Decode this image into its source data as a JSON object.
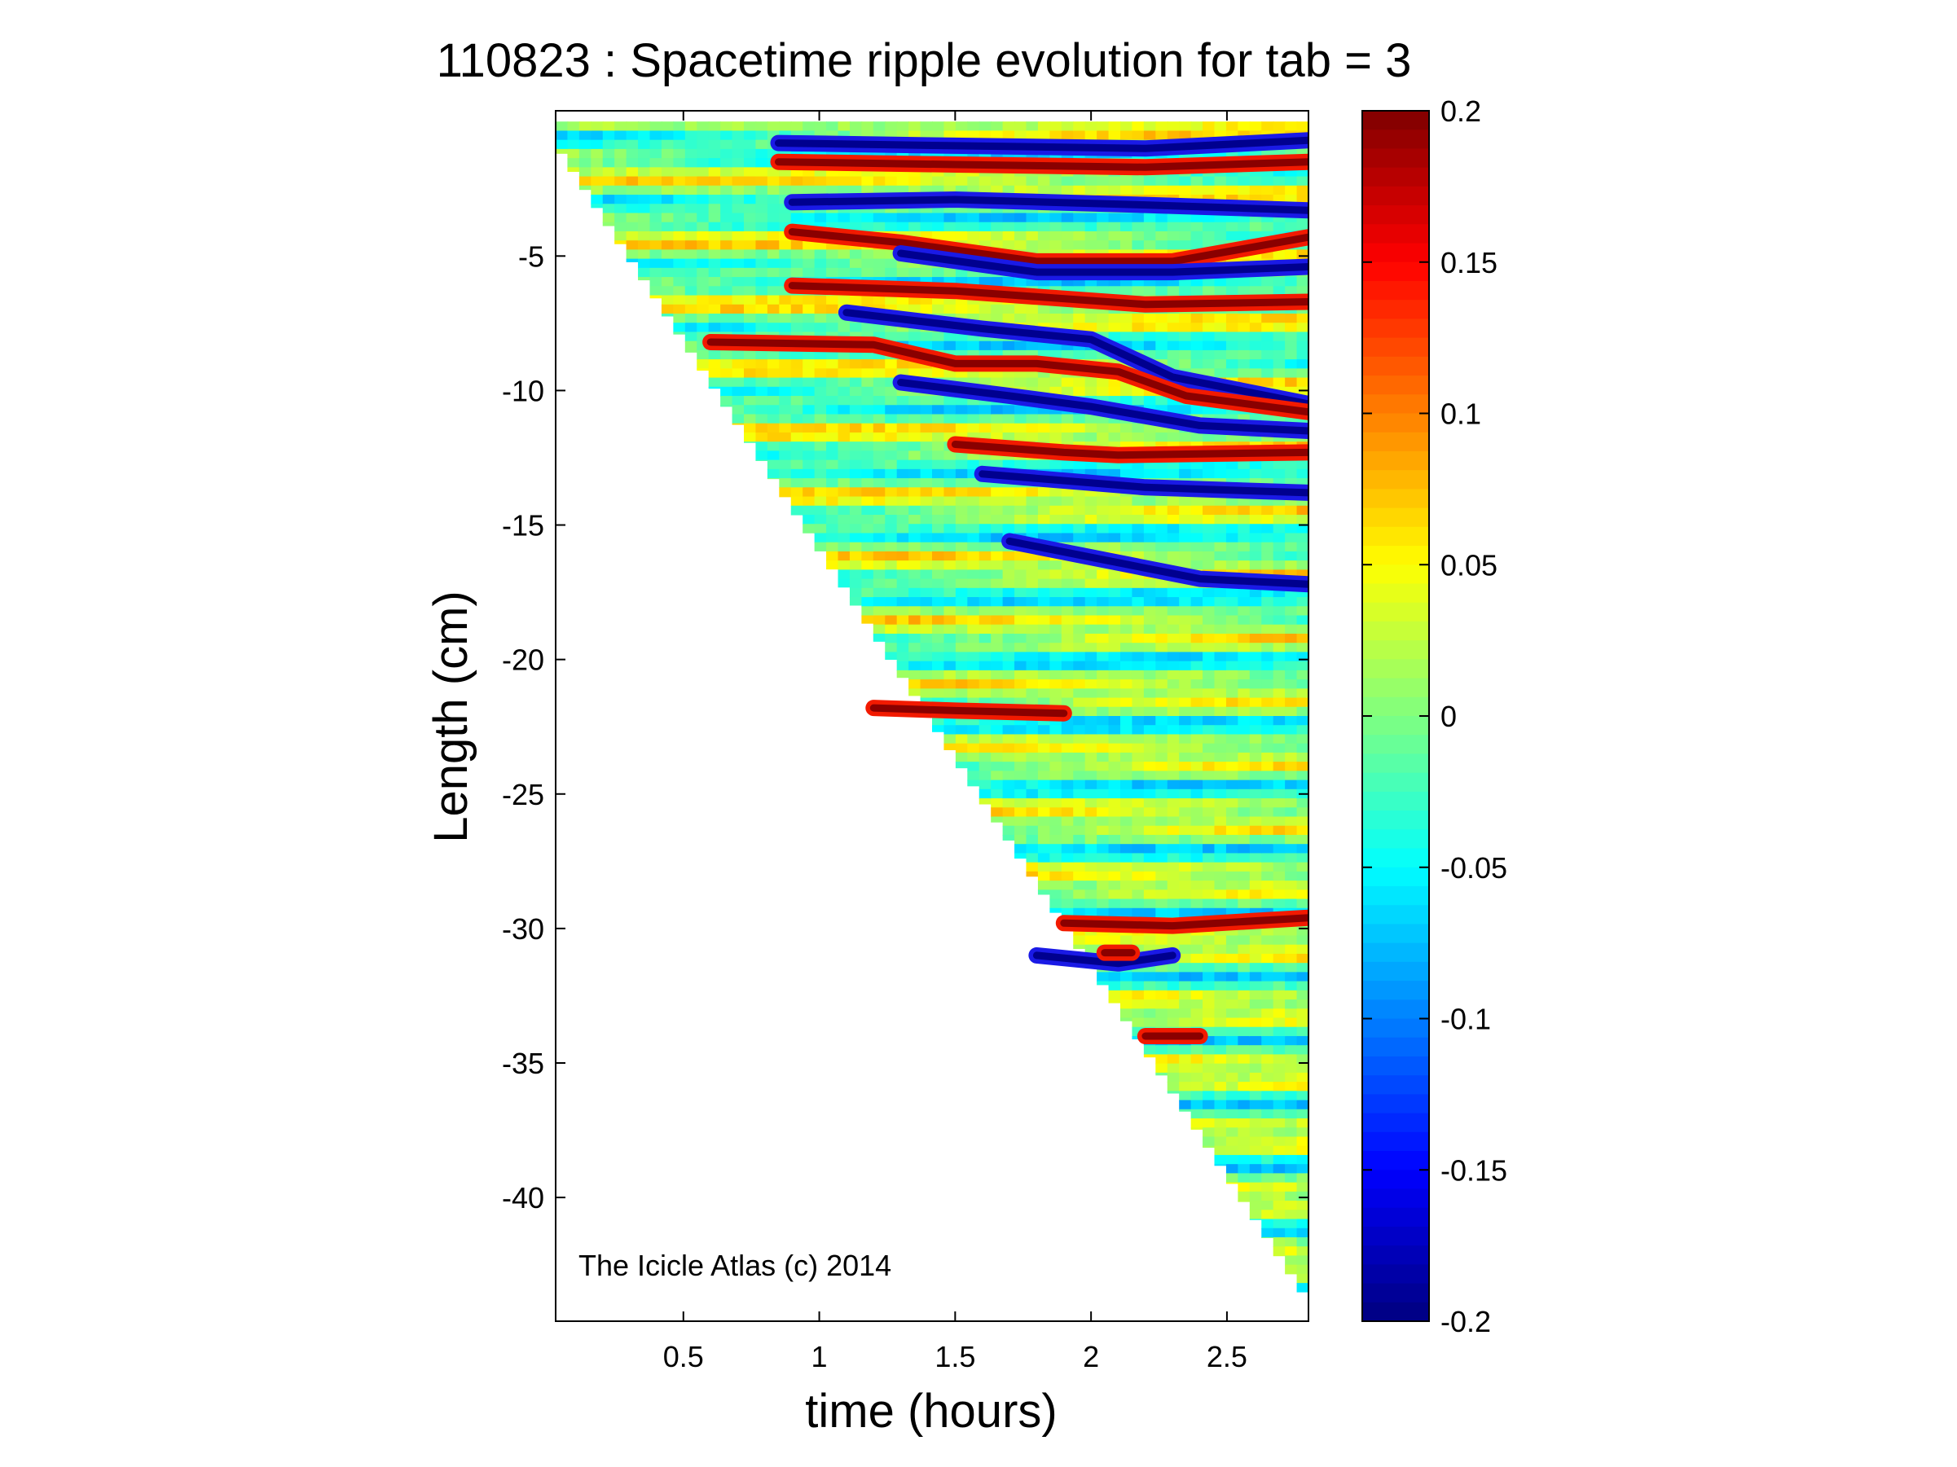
{
  "chart_data": {
    "type": "heatmap",
    "title": "110823 : Spacetime ripple evolution for tab = 3",
    "xlabel": "time (hours)",
    "ylabel": "Length (cm)",
    "xlim": [
      0.03,
      2.8
    ],
    "ylim": [
      -44.6,
      0.4
    ],
    "x_ticks": [
      0.5,
      1,
      1.5,
      2,
      2.5
    ],
    "x_tick_labels": [
      "0.5",
      "1",
      "1.5",
      "2",
      "2.5"
    ],
    "y_ticks": [
      -5,
      -10,
      -15,
      -20,
      -25,
      -30,
      -35,
      -40
    ],
    "y_tick_labels": [
      "-5",
      "-10",
      "-15",
      "-20",
      "-25",
      "-30",
      "-35",
      "-40"
    ],
    "colormap": "jet",
    "clim": [
      -0.2,
      0.2
    ],
    "colorbar_ticks": [
      0.2,
      0.15,
      0.1,
      0.05,
      0,
      -0.05,
      -0.1,
      -0.15,
      -0.2
    ],
    "colorbar_tick_labels": [
      "0.2",
      "0.15",
      "0.1",
      "0.05",
      "0",
      "-0.05",
      "-0.1",
      "-0.15",
      "-0.2"
    ],
    "data_boundary": {
      "description_free_note": "",
      "time_hours": [
        0.03,
        2.8
      ],
      "tip_length_cm": [
        -0.5,
        -43.5
      ]
    },
    "features": [
      {
        "kind": "trough",
        "points": [
          [
            0.85,
            -0.8
          ],
          [
            1.5,
            -0.9
          ],
          [
            2.2,
            -1.0
          ],
          [
            2.8,
            -0.7
          ]
        ]
      },
      {
        "kind": "crest",
        "points": [
          [
            0.85,
            -1.5
          ],
          [
            1.5,
            -1.6
          ],
          [
            2.2,
            -1.7
          ],
          [
            2.8,
            -1.5
          ]
        ]
      },
      {
        "kind": "trough",
        "points": [
          [
            0.9,
            -3.0
          ],
          [
            1.5,
            -2.9
          ],
          [
            2.2,
            -3.1
          ],
          [
            2.8,
            -3.3
          ]
        ]
      },
      {
        "kind": "crest",
        "points": [
          [
            0.9,
            -4.1
          ],
          [
            1.3,
            -4.5
          ],
          [
            1.8,
            -5.2
          ],
          [
            2.3,
            -5.2
          ],
          [
            2.8,
            -4.3
          ]
        ]
      },
      {
        "kind": "trough",
        "points": [
          [
            1.3,
            -4.9
          ],
          [
            1.8,
            -5.6
          ],
          [
            2.3,
            -5.6
          ],
          [
            2.8,
            -5.4
          ]
        ]
      },
      {
        "kind": "crest",
        "points": [
          [
            0.9,
            -6.1
          ],
          [
            1.5,
            -6.3
          ],
          [
            2.2,
            -6.8
          ],
          [
            2.8,
            -6.7
          ]
        ]
      },
      {
        "kind": "trough",
        "points": [
          [
            1.1,
            -7.1
          ],
          [
            1.6,
            -7.7
          ],
          [
            2.0,
            -8.1
          ],
          [
            2.3,
            -9.5
          ],
          [
            2.8,
            -10.5
          ]
        ]
      },
      {
        "kind": "crest",
        "points": [
          [
            0.6,
            -8.2
          ],
          [
            1.2,
            -8.3
          ],
          [
            1.5,
            -9.0
          ],
          [
            1.8,
            -9.0
          ],
          [
            2.1,
            -9.3
          ],
          [
            2.35,
            -10.2
          ],
          [
            2.8,
            -10.8
          ]
        ]
      },
      {
        "kind": "trough",
        "points": [
          [
            1.3,
            -9.7
          ],
          [
            1.7,
            -10.2
          ],
          [
            2.0,
            -10.6
          ],
          [
            2.4,
            -11.3
          ],
          [
            2.8,
            -11.5
          ]
        ]
      },
      {
        "kind": "crest",
        "points": [
          [
            1.5,
            -12.0
          ],
          [
            1.9,
            -12.3
          ],
          [
            2.1,
            -12.4
          ],
          [
            2.8,
            -12.3
          ]
        ]
      },
      {
        "kind": "trough",
        "points": [
          [
            1.6,
            -13.1
          ],
          [
            2.2,
            -13.6
          ],
          [
            2.8,
            -13.8
          ]
        ]
      },
      {
        "kind": "trough",
        "points": [
          [
            1.7,
            -15.6
          ],
          [
            2.0,
            -16.2
          ],
          [
            2.4,
            -17.0
          ],
          [
            2.8,
            -17.2
          ]
        ]
      },
      {
        "kind": "crest",
        "points": [
          [
            1.2,
            -21.8
          ],
          [
            1.5,
            -21.9
          ],
          [
            1.9,
            -22.0
          ]
        ]
      },
      {
        "kind": "crest",
        "points": [
          [
            1.9,
            -29.8
          ],
          [
            2.3,
            -29.9
          ],
          [
            2.8,
            -29.6
          ]
        ]
      },
      {
        "kind": "trough",
        "points": [
          [
            1.8,
            -31.0
          ],
          [
            2.1,
            -31.3
          ],
          [
            2.3,
            -31.0
          ]
        ]
      },
      {
        "kind": "crest",
        "points": [
          [
            2.05,
            -30.9
          ],
          [
            2.15,
            -30.9
          ]
        ]
      },
      {
        "kind": "crest",
        "points": [
          [
            2.2,
            -34.0
          ],
          [
            2.4,
            -34.0
          ]
        ]
      }
    ]
  },
  "watermark": "The Icicle Atlas (c) 2014"
}
